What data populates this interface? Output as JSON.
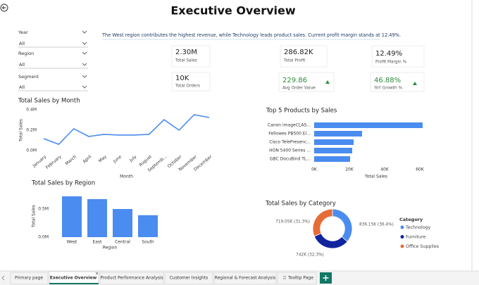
{
  "header": {
    "title": "Executive Overview"
  },
  "slicers": [
    {
      "label": "Year",
      "value": "All"
    },
    {
      "label": "Region",
      "value": "All"
    },
    {
      "label": "Segment",
      "value": "All"
    }
  ],
  "narrative": "The West region contributes the highest revenue, while Technology leads product sales. Current profit margin stands at 12.49%.",
  "cards": [
    {
      "value": "2.30M",
      "label": "Total Sales"
    },
    {
      "value": "286.82K",
      "label": "Total Profit"
    },
    {
      "value": "12.49%",
      "label": "Profit Margin %"
    },
    {
      "value": "10K",
      "label": "Total Orders"
    },
    {
      "value": "229.86",
      "label": "Avg Order Value"
    },
    {
      "value": "46.88%",
      "label": "YoY Growth %"
    }
  ],
  "chart_data": [
    {
      "type": "line",
      "title": "Total Sales by Month",
      "x_label": "Month",
      "y_label": "Total Sales",
      "color": "#4a8cf0",
      "categories": [
        "January",
        "February",
        "March",
        "April",
        "May",
        "June",
        "July",
        "August",
        "Septemb...",
        "October",
        "November",
        "December"
      ],
      "values": [
        117000,
        62000,
        214000,
        138000,
        159000,
        152000,
        152000,
        159000,
        303000,
        200000,
        352000,
        324000
      ],
      "ylim": [
        0,
        400000
      ],
      "yticks": [
        {
          "value": 0,
          "label": "0.0M"
        },
        {
          "value": 200000,
          "label": "0.2M"
        },
        {
          "value": 400000,
          "label": "0.4M"
        }
      ]
    },
    {
      "type": "barh",
      "title": "Top 5 Products by Sales",
      "x_label": "Total Sales",
      "color": "#4a8cf0",
      "categories": [
        "Canon imageCLAS...",
        "Fellowes PB500 El...",
        "Cisco TelePresenc...",
        "HON 5400 Series ...",
        "GBC DocuBind TL..."
      ],
      "values": [
        61600,
        27200,
        22400,
        21600,
        20400
      ],
      "xlim": [
        0,
        62000
      ],
      "xticks": [
        {
          "value": 0,
          "label": "0K"
        },
        {
          "value": 20000,
          "label": "20K"
        },
        {
          "value": 40000,
          "label": "40K"
        },
        {
          "value": 60000,
          "label": "60K"
        }
      ]
    },
    {
      "type": "bar",
      "title": "Total Sales by Region",
      "x_label": "Region",
      "y_label": "Total Sales",
      "color": "#4a8cf0",
      "categories": [
        "West",
        "East",
        "Central",
        "South"
      ],
      "values": [
        725000,
        675000,
        500000,
        390000
      ],
      "ylim": [
        0,
        750000
      ],
      "yticks": [
        {
          "value": 0,
          "label": "0.0M"
        },
        {
          "value": 500000,
          "label": "0.5M"
        }
      ]
    },
    {
      "type": "donut",
      "title": "Total Sales by Category",
      "legend_title": "Category",
      "legend": "right",
      "categories": [
        "Technology",
        "Furniture",
        "Office Supplies"
      ],
      "values": [
        836150,
        742000,
        719050
      ],
      "value_labels": [
        "836.15K (36.4%)",
        "742K (32.3%)",
        "719.05K (31.3%)"
      ],
      "colors": [
        "#4a8cf0",
        "#12239e",
        "#e66c37"
      ]
    }
  ],
  "tabs": [
    "Primary page",
    "Executive Overview",
    "Product Performance Analysis",
    "Customer Insights",
    "Regional & Forecast Analysis",
    "Tooltip Page"
  ]
}
